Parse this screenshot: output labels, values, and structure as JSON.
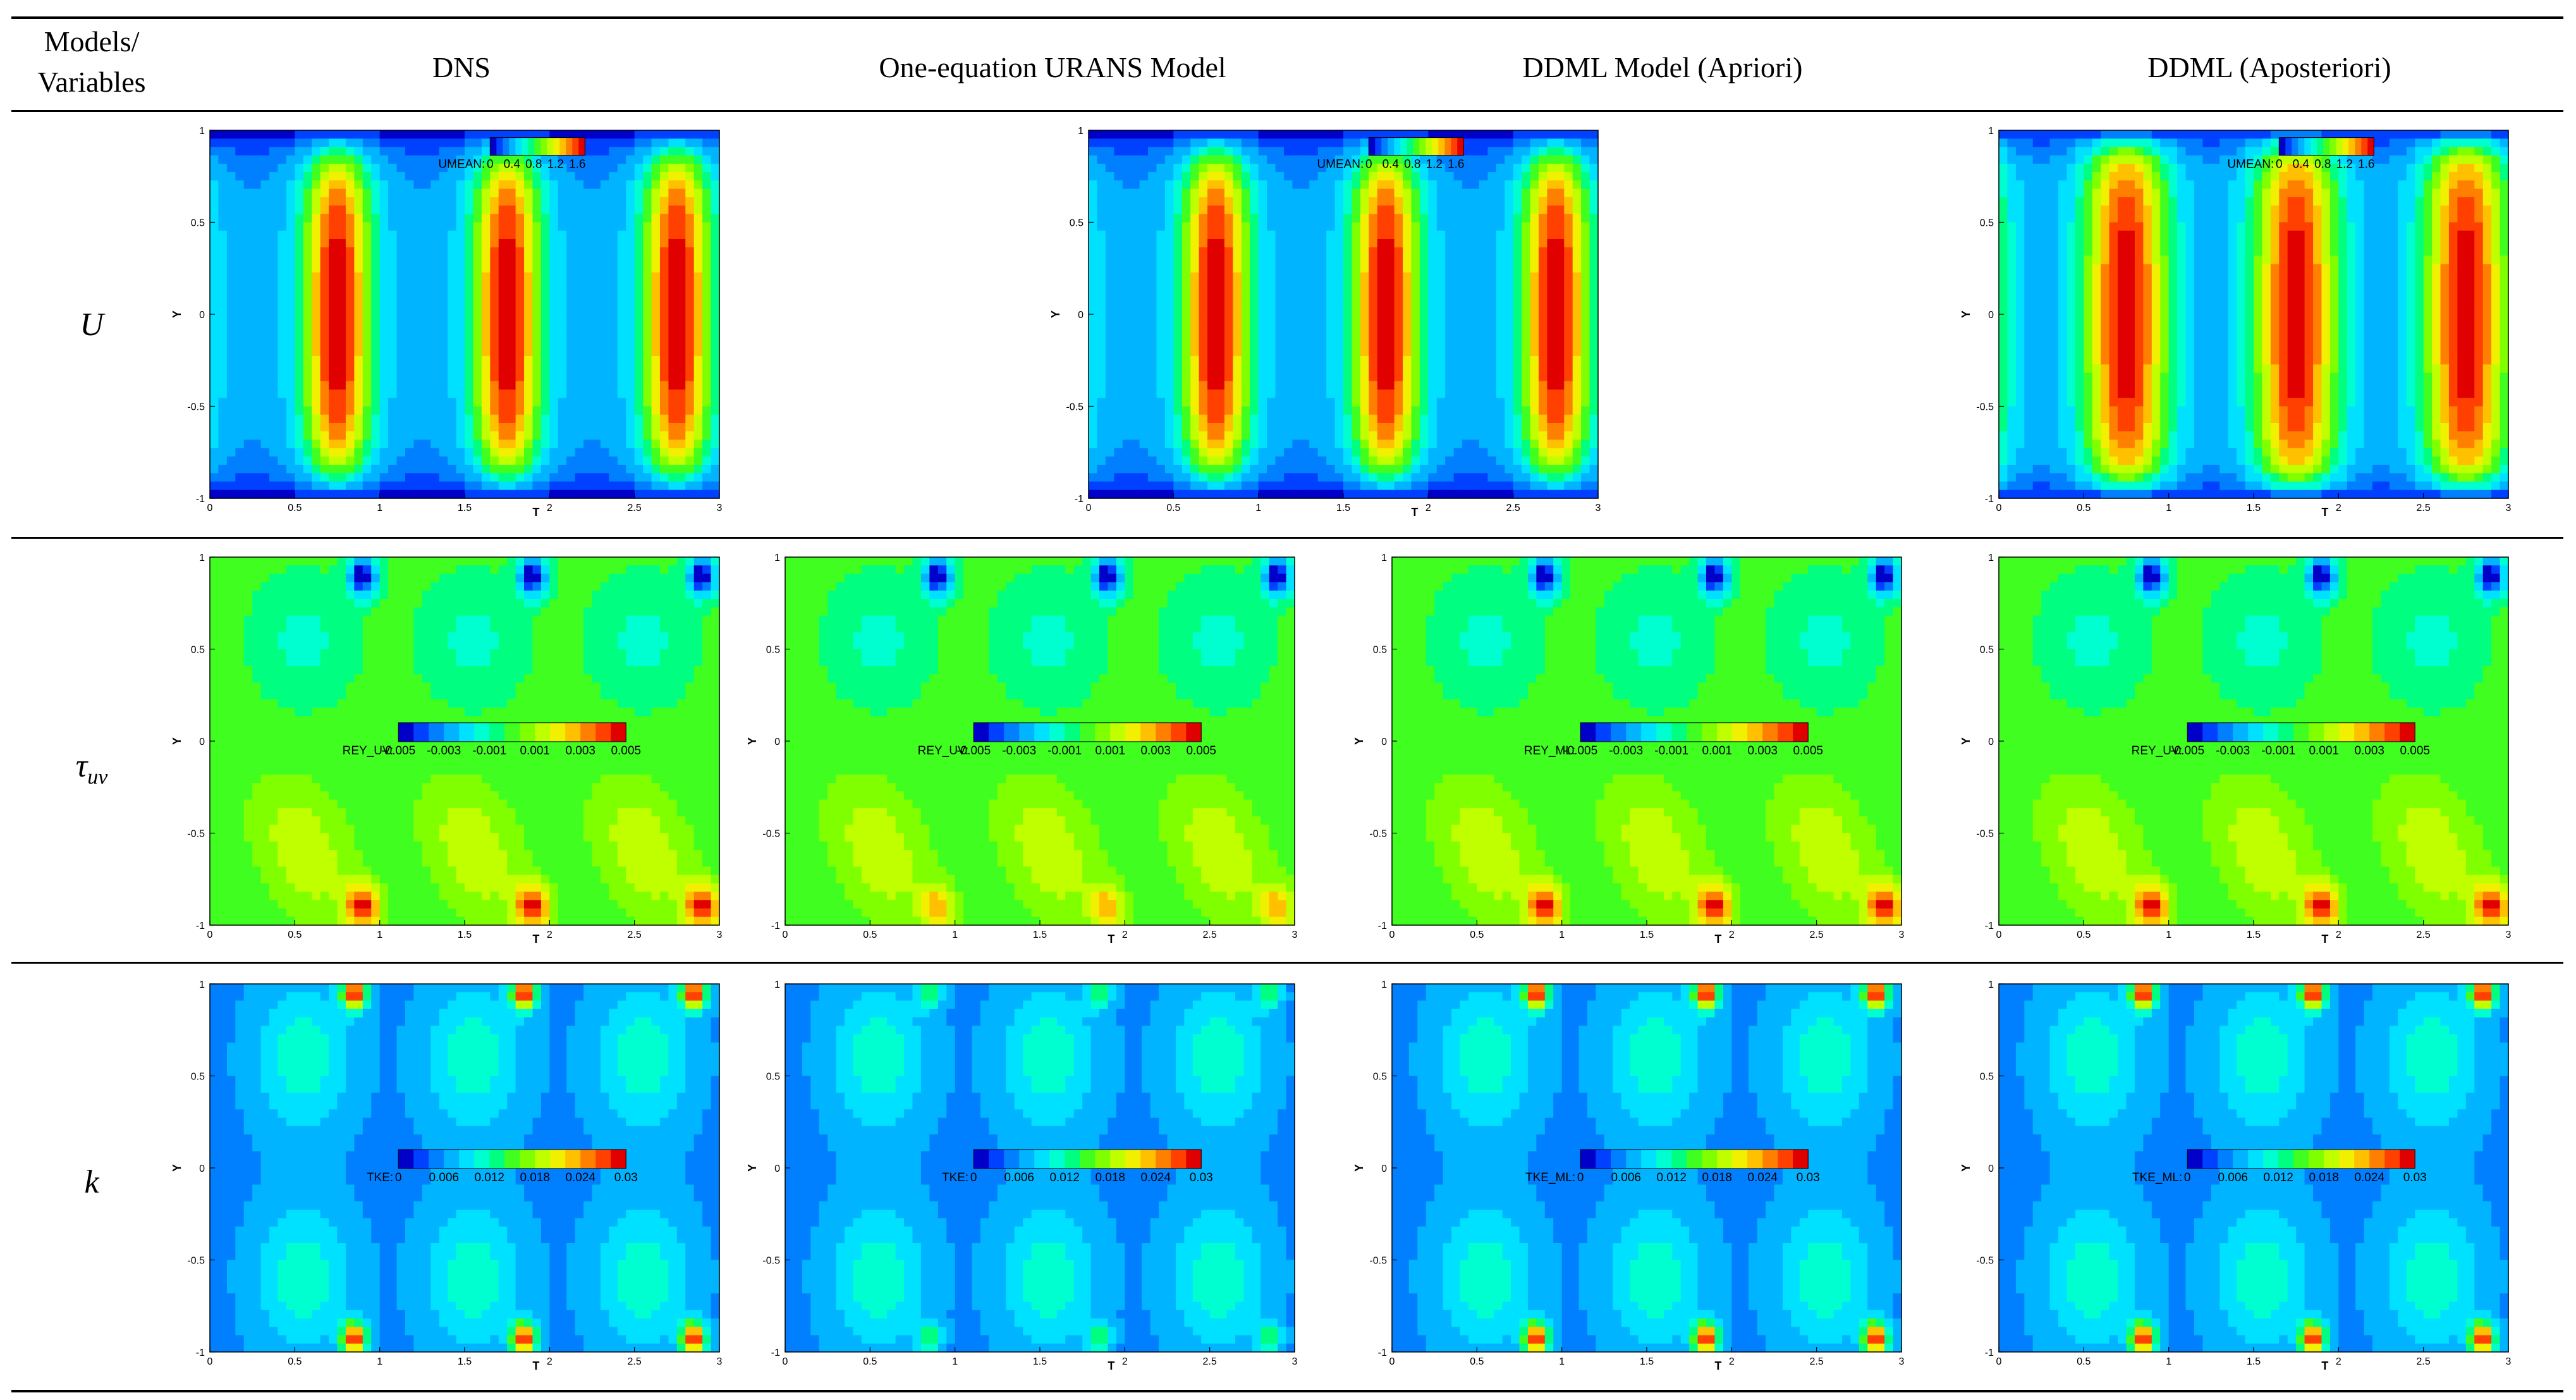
{
  "table": {
    "header_corner": [
      "Models/",
      "Variables"
    ],
    "columns": [
      "DNS",
      "One-equation URANS Model",
      "DDML Model (Apriori)",
      "DDML (Aposteriori)"
    ],
    "rows": [
      {
        "variable": "U",
        "sub": ""
      },
      {
        "variable": "τ",
        "sub": "uv"
      },
      {
        "variable": "k",
        "sub": ""
      }
    ]
  },
  "axes": {
    "xlabel": "T",
    "ylabel": "Y",
    "xticks": [
      "0",
      "0.5",
      "1",
      "1.5",
      "2",
      "2.5",
      "3"
    ],
    "yticks": [
      "1",
      "0.5",
      "0",
      "-0.5",
      "-1"
    ]
  },
  "colorbars": {
    "U": {
      "ticks": [
        "0",
        "0.4",
        "0.8",
        "1.2",
        "1.6"
      ],
      "labels": [
        "UMEAN:",
        "",
        "UMEAN:",
        "UMEAN:"
      ]
    },
    "tau": {
      "ticks": [
        "-0.005",
        "-0.003",
        "-0.001",
        "0.001",
        "0.003",
        "0.005"
      ],
      "labels": [
        "REY_UV:",
        "REY_UV:",
        "REY_ML:",
        "REY_UV:"
      ]
    },
    "k": {
      "ticks": [
        "0",
        "0.006",
        "0.012",
        "0.018",
        "0.024",
        "0.03"
      ],
      "labels": [
        "TKE:",
        "TKE:",
        "TKE_ML:",
        "TKE_ML:"
      ]
    }
  },
  "chart_data": [
    {
      "type": "heatmap",
      "row": "U",
      "column": "DNS",
      "title": "",
      "xlabel": "T",
      "ylabel": "Y",
      "xlim": [
        0,
        3
      ],
      "ylim": [
        -1,
        1
      ],
      "colorbar": "UMEAN:",
      "zlim": [
        0,
        1.6
      ],
      "description_values": {
        "peak_T": [
          0.75,
          1.75,
          2.75
        ],
        "peak_value": 1.6
      }
    },
    {
      "type": "heatmap",
      "row": "U",
      "column": "One-equation URANS Model",
      "present": false
    },
    {
      "type": "heatmap",
      "row": "U",
      "column": "DDML Model (Apriori)",
      "title": "",
      "xlabel": "T",
      "ylabel": "Y",
      "xlim": [
        0,
        3
      ],
      "ylim": [
        -1,
        1
      ],
      "colorbar": "UMEAN:",
      "zlim": [
        0,
        1.6
      ]
    },
    {
      "type": "heatmap",
      "row": "U",
      "column": "DDML (Aposteriori)",
      "title": "",
      "xlabel": "T",
      "ylabel": "Y",
      "xlim": [
        0,
        3
      ],
      "ylim": [
        -1,
        1
      ],
      "colorbar": "UMEAN:",
      "zlim": [
        0,
        1.6
      ]
    },
    {
      "type": "heatmap",
      "row": "tau_uv",
      "column": "DNS",
      "xlabel": "T",
      "ylabel": "Y",
      "xlim": [
        0,
        3
      ],
      "ylim": [
        -1,
        1
      ],
      "colorbar": "REY_UV:",
      "zlim": [
        -0.005,
        0.005
      ]
    },
    {
      "type": "heatmap",
      "row": "tau_uv",
      "column": "One-equation URANS Model",
      "xlabel": "T",
      "ylabel": "Y",
      "xlim": [
        0,
        3
      ],
      "ylim": [
        -1,
        1
      ],
      "colorbar": "REY_UV:",
      "zlim": [
        -0.005,
        0.005
      ]
    },
    {
      "type": "heatmap",
      "row": "tau_uv",
      "column": "DDML Model (Apriori)",
      "xlabel": "T",
      "ylabel": "Y",
      "xlim": [
        0,
        3
      ],
      "ylim": [
        -1,
        1
      ],
      "colorbar": "REY_ML:",
      "zlim": [
        -0.005,
        0.005
      ]
    },
    {
      "type": "heatmap",
      "row": "tau_uv",
      "column": "DDML (Aposteriori)",
      "xlabel": "T",
      "ylabel": "Y",
      "xlim": [
        0,
        3
      ],
      "ylim": [
        -1,
        1
      ],
      "colorbar": "REY_UV:",
      "zlim": [
        -0.005,
        0.005
      ]
    },
    {
      "type": "heatmap",
      "row": "k",
      "column": "DNS",
      "xlabel": "T",
      "ylabel": "Y",
      "xlim": [
        0,
        3
      ],
      "ylim": [
        -1,
        1
      ],
      "colorbar": "TKE:",
      "zlim": [
        0,
        0.03
      ]
    },
    {
      "type": "heatmap",
      "row": "k",
      "column": "One-equation URANS Model",
      "xlabel": "T",
      "ylabel": "Y",
      "xlim": [
        0,
        3
      ],
      "ylim": [
        -1,
        1
      ],
      "colorbar": "TKE:",
      "zlim": [
        0,
        0.03
      ]
    },
    {
      "type": "heatmap",
      "row": "k",
      "column": "DDML Model (Apriori)",
      "xlabel": "T",
      "ylabel": "Y",
      "xlim": [
        0,
        3
      ],
      "ylim": [
        -1,
        1
      ],
      "colorbar": "TKE_ML:",
      "zlim": [
        0,
        0.03
      ]
    },
    {
      "type": "heatmap",
      "row": "k",
      "column": "DDML (Aposteriori)",
      "xlabel": "T",
      "ylabel": "Y",
      "xlim": [
        0,
        3
      ],
      "ylim": [
        -1,
        1
      ],
      "colorbar": "TKE_ML:",
      "zlim": [
        0,
        0.03
      ]
    }
  ]
}
